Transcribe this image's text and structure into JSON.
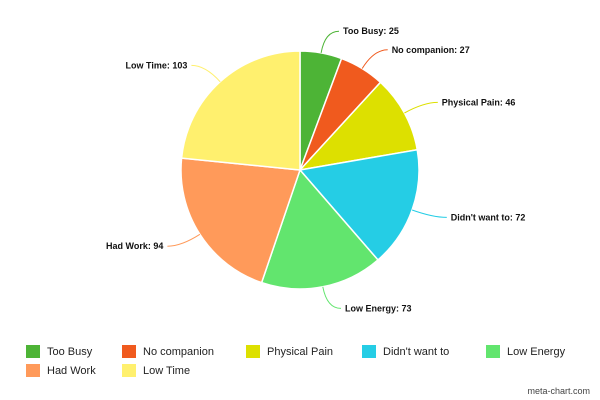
{
  "chart_data": {
    "type": "pie",
    "title": "",
    "categories": [
      "Too Busy",
      "No companion",
      "Physical Pain",
      "Didn't want to",
      "Low Energy",
      "Had Work",
      "Low Time"
    ],
    "values": [
      25,
      27,
      46,
      72,
      73,
      94,
      103
    ],
    "colors": [
      "#4db436",
      "#f05a1e",
      "#dde000",
      "#25cde5",
      "#62e56e",
      "#ff9a5a",
      "#fff06e"
    ],
    "label_format": "name: value",
    "legend_position": "bottom"
  },
  "watermark": "meta-chart.com"
}
